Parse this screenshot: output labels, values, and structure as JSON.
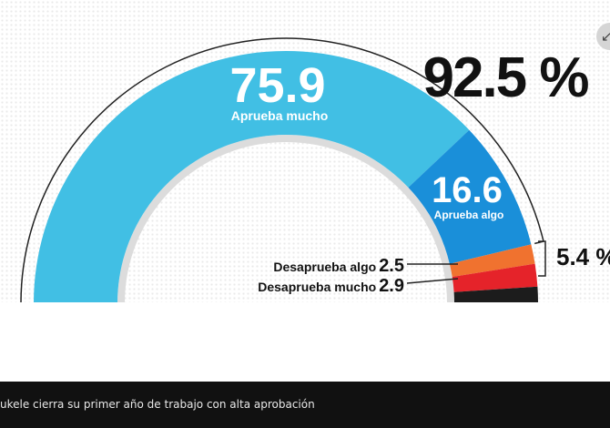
{
  "chart_data": {
    "type": "pie",
    "shape": "half-donut",
    "unit": "%",
    "segments": [
      {
        "name": "Aprueba mucho",
        "value": 75.9,
        "value_label": "75.9",
        "color": "#41bfe4"
      },
      {
        "name": "Aprueba algo",
        "value": 16.6,
        "value_label": "16.6",
        "color": "#1a8fd9"
      },
      {
        "name": "Desaprueba algo",
        "value": 2.5,
        "value_label": "2.5",
        "color": "#f0722f"
      },
      {
        "name": "Desaprueba mucho",
        "value": 2.9,
        "value_label": "2.9",
        "color": "#e5232a"
      },
      {
        "name": "",
        "value": 2.1,
        "value_label": "",
        "color": "#1c1c1c"
      }
    ],
    "totals": {
      "approve": "92.5 %",
      "disapprove": "5.4 %"
    }
  },
  "caption": "ukele cierra su primer año de trabajo con alta aprobación",
  "expand_icon": "arrow-icon"
}
